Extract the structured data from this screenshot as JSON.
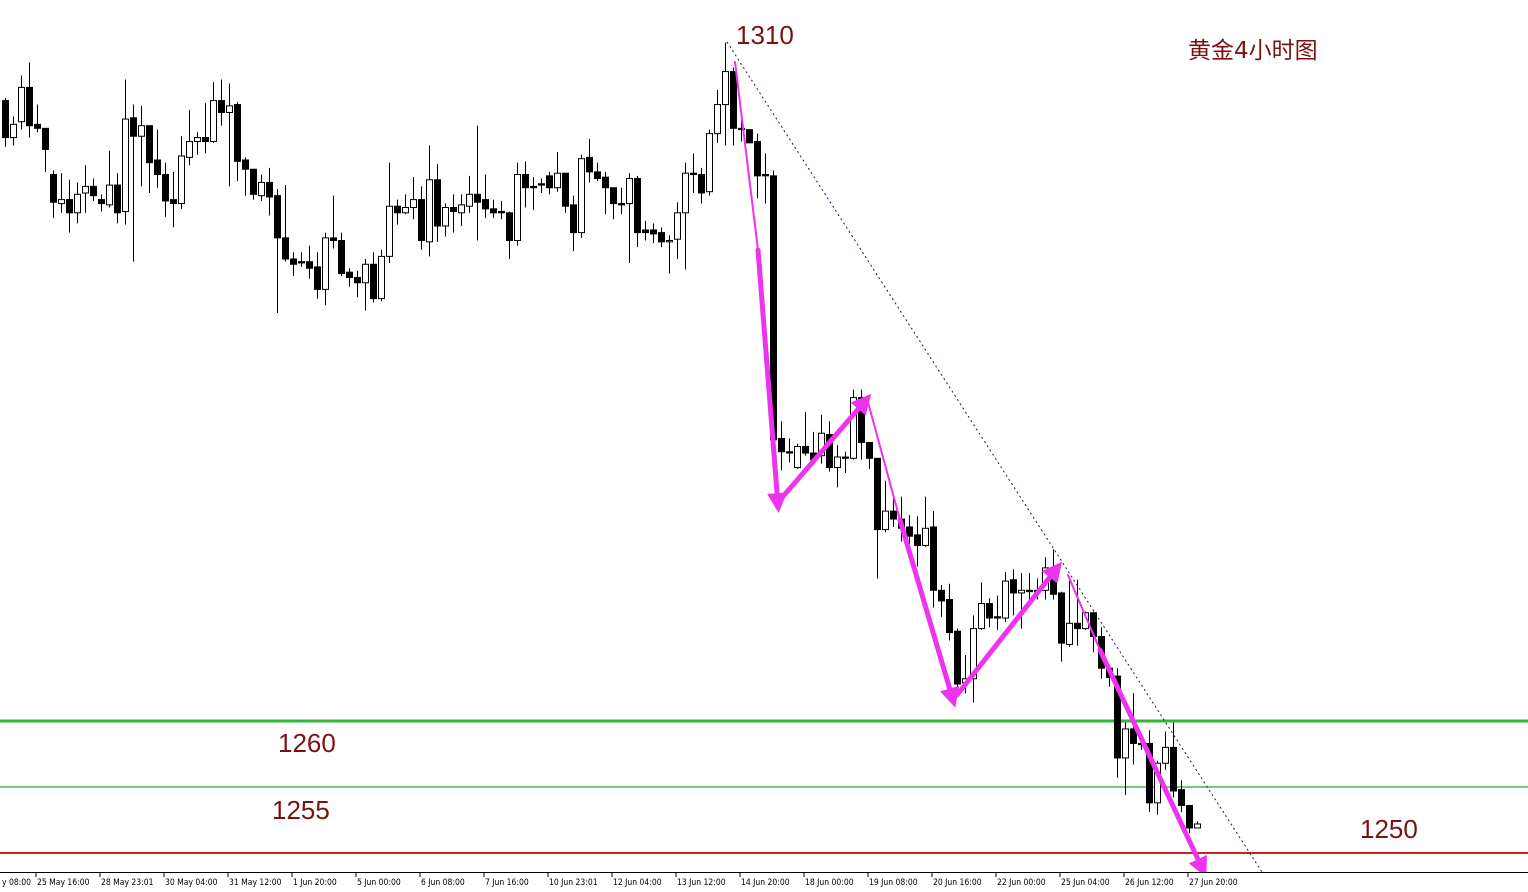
{
  "chart_data": {
    "type": "candlestick",
    "title": "黄金4小时图",
    "peak_label": "1310",
    "ylim": [
      1248.6,
      1314.6
    ],
    "grid": false,
    "colors": {
      "bull_body": "#ffffff",
      "bear_body": "#000000",
      "wick": "#000000",
      "arrows": "#ee33ee",
      "trendline": "#1a1a5a",
      "label_text": "#7a1212"
    },
    "levels": [
      {
        "price": 1260,
        "label": "1260",
        "color": "#2fba2f"
      },
      {
        "price": 1255,
        "label": "1255",
        "color": "#44bb44"
      },
      {
        "price": 1250,
        "label": "1250",
        "color": "#cc2020"
      }
    ],
    "x_ticks": [
      {
        "bar": -4,
        "label": "y 08:00"
      },
      {
        "bar": 4,
        "label": "25 May 16:00"
      },
      {
        "bar": 12,
        "label": "28 May 23:01"
      },
      {
        "bar": 20,
        "label": "30 May 04:00"
      },
      {
        "bar": 28,
        "label": "31 May 12:00"
      },
      {
        "bar": 36,
        "label": "1 Jun 20:00"
      },
      {
        "bar": 44,
        "label": "5 Jun 00:00"
      },
      {
        "bar": 52,
        "label": "6 Jun 08:00"
      },
      {
        "bar": 60,
        "label": "7 Jun 16:00"
      },
      {
        "bar": 68,
        "label": "10 Jun 23:01"
      },
      {
        "bar": 76,
        "label": "12 Jun 04:00"
      },
      {
        "bar": 84,
        "label": "13 Jun 12:00"
      },
      {
        "bar": 92,
        "label": "14 Jun 20:00"
      },
      {
        "bar": 100,
        "label": "18 Jun 00:00"
      },
      {
        "bar": 108,
        "label": "19 Jun 08:00"
      },
      {
        "bar": 116,
        "label": "20 Jun 16:00"
      },
      {
        "bar": 124,
        "label": "22 Jun 00:00"
      },
      {
        "bar": 132,
        "label": "25 Jun 04:00"
      },
      {
        "bar": 140,
        "label": "26 Jun 12:00"
      },
      {
        "bar": 148,
        "label": "27 Jun 20:00"
      }
    ],
    "ohlc_fields": [
      "open",
      "high",
      "low",
      "close"
    ],
    "ohlc": [
      [
        1307.0,
        1307.2,
        1303.5,
        1304.2
      ],
      [
        1304.2,
        1305.8,
        1303.6,
        1305.2
      ],
      [
        1305.4,
        1308.9,
        1304.8,
        1308.0
      ],
      [
        1308.0,
        1309.9,
        1304.2,
        1305.1
      ],
      [
        1305.2,
        1306.7,
        1304.6,
        1304.9
      ],
      [
        1304.9,
        1304.9,
        1301.6,
        1303.3
      ],
      [
        1301.4,
        1301.7,
        1298.1,
        1299.3
      ],
      [
        1299.2,
        1301.5,
        1298.5,
        1299.5
      ],
      [
        1299.5,
        1301.0,
        1297.0,
        1298.5
      ],
      [
        1298.5,
        1300.8,
        1297.7,
        1299.9
      ],
      [
        1300.0,
        1302.1,
        1298.5,
        1300.5
      ],
      [
        1300.5,
        1301.1,
        1299.4,
        1299.8
      ],
      [
        1299.5,
        1299.9,
        1298.6,
        1299.2
      ],
      [
        1299.1,
        1303.2,
        1298.9,
        1300.6
      ],
      [
        1300.6,
        1301.5,
        1297.7,
        1298.5
      ],
      [
        1298.6,
        1308.6,
        1297.6,
        1305.6
      ],
      [
        1305.7,
        1306.7,
        1294.8,
        1304.3
      ],
      [
        1304.3,
        1306.6,
        1300.5,
        1305.1
      ],
      [
        1305.1,
        1305.1,
        1300.0,
        1302.3
      ],
      [
        1302.5,
        1304.8,
        1300.4,
        1301.4
      ],
      [
        1301.4,
        1302.3,
        1298.2,
        1299.4
      ],
      [
        1299.5,
        1301.6,
        1297.4,
        1299.2
      ],
      [
        1299.2,
        1304.3,
        1298.8,
        1302.8
      ],
      [
        1302.7,
        1306.3,
        1302.1,
        1303.9
      ],
      [
        1303.9,
        1304.6,
        1302.9,
        1304.2
      ],
      [
        1304.2,
        1306.8,
        1303.0,
        1303.9
      ],
      [
        1303.9,
        1308.4,
        1303.8,
        1307.0
      ],
      [
        1307.0,
        1308.6,
        1305.1,
        1306.1
      ],
      [
        1306.1,
        1308.3,
        1300.5,
        1306.6
      ],
      [
        1306.7,
        1306.9,
        1300.9,
        1302.4
      ],
      [
        1302.5,
        1302.7,
        1299.8,
        1301.8
      ],
      [
        1301.8,
        1301.8,
        1299.5,
        1299.9
      ],
      [
        1299.8,
        1301.4,
        1299.4,
        1300.8
      ],
      [
        1300.8,
        1301.9,
        1298.3,
        1299.7
      ],
      [
        1299.8,
        1300.3,
        1290.9,
        1296.6
      ],
      [
        1296.6,
        1300.6,
        1294.8,
        1295.0
      ],
      [
        1295.0,
        1295.5,
        1293.7,
        1294.6
      ],
      [
        1294.8,
        1295.5,
        1294.4,
        1294.7
      ],
      [
        1294.8,
        1296.0,
        1293.5,
        1294.3
      ],
      [
        1294.4,
        1295.5,
        1292.0,
        1292.7
      ],
      [
        1292.7,
        1297.0,
        1291.5,
        1296.6
      ],
      [
        1296.6,
        1299.8,
        1295.8,
        1296.4
      ],
      [
        1296.4,
        1297.0,
        1293.7,
        1293.9
      ],
      [
        1294.0,
        1294.3,
        1292.9,
        1293.6
      ],
      [
        1293.6,
        1294.1,
        1292.1,
        1293.2
      ],
      [
        1293.2,
        1295.0,
        1291.1,
        1294.6
      ],
      [
        1294.6,
        1295.5,
        1291.7,
        1292.0
      ],
      [
        1292.0,
        1295.7,
        1291.8,
        1295.2
      ],
      [
        1295.2,
        1302.3,
        1294.7,
        1299.0
      ],
      [
        1299.0,
        1299.5,
        1297.6,
        1298.5
      ],
      [
        1298.5,
        1299.9,
        1298.4,
        1298.9
      ],
      [
        1298.9,
        1301.2,
        1298.0,
        1299.5
      ],
      [
        1299.5,
        1300.5,
        1295.7,
        1296.4
      ],
      [
        1296.3,
        1303.6,
        1295.2,
        1301.0
      ],
      [
        1301.0,
        1302.2,
        1296.3,
        1297.5
      ],
      [
        1297.5,
        1299.2,
        1296.7,
        1298.9
      ],
      [
        1298.9,
        1299.9,
        1297.0,
        1298.6
      ],
      [
        1298.5,
        1299.9,
        1297.5,
        1299.1
      ],
      [
        1299.0,
        1301.3,
        1298.5,
        1299.9
      ],
      [
        1299.9,
        1305.1,
        1296.4,
        1299.3
      ],
      [
        1299.5,
        1301.4,
        1298.1,
        1298.8
      ],
      [
        1298.8,
        1299.5,
        1298.1,
        1298.5
      ],
      [
        1298.6,
        1299.4,
        1298.0,
        1298.5
      ],
      [
        1298.5,
        1298.6,
        1295.0,
        1296.4
      ],
      [
        1296.4,
        1302.3,
        1296.0,
        1301.4
      ],
      [
        1301.4,
        1302.4,
        1298.9,
        1300.4
      ],
      [
        1300.5,
        1301.2,
        1298.7,
        1300.4
      ],
      [
        1300.7,
        1301.1,
        1300.0,
        1300.6
      ],
      [
        1301.3,
        1301.6,
        1299.9,
        1300.4
      ],
      [
        1300.4,
        1303.1,
        1300.1,
        1301.5
      ],
      [
        1301.5,
        1301.5,
        1298.5,
        1299.0
      ],
      [
        1299.1,
        1299.8,
        1295.6,
        1297.0
      ],
      [
        1297.0,
        1302.9,
        1296.6,
        1302.6
      ],
      [
        1302.7,
        1304.1,
        1300.8,
        1301.6
      ],
      [
        1301.6,
        1302.3,
        1300.9,
        1301.1
      ],
      [
        1301.2,
        1301.6,
        1298.4,
        1300.4
      ],
      [
        1300.4,
        1300.4,
        1298.0,
        1299.2
      ],
      [
        1299.2,
        1300.4,
        1298.4,
        1299.1
      ],
      [
        1299.2,
        1301.5,
        1294.7,
        1301.1
      ],
      [
        1301.1,
        1301.3,
        1295.9,
        1297.0
      ],
      [
        1297.2,
        1297.9,
        1296.4,
        1297.0
      ],
      [
        1297.2,
        1297.7,
        1296.2,
        1296.9
      ],
      [
        1297.0,
        1297.4,
        1295.9,
        1296.3
      ],
      [
        1296.3,
        1296.8,
        1293.9,
        1296.4
      ],
      [
        1296.5,
        1299.3,
        1295.0,
        1298.5
      ],
      [
        1298.5,
        1302.3,
        1294.2,
        1301.5
      ],
      [
        1301.5,
        1303.0,
        1300.0,
        1301.4
      ],
      [
        1301.4,
        1301.9,
        1299.2,
        1300.0
      ],
      [
        1300.1,
        1304.8,
        1299.8,
        1304.5
      ],
      [
        1304.5,
        1307.8,
        1303.8,
        1306.7
      ],
      [
        1306.7,
        1311.4,
        1303.6,
        1309.2
      ],
      [
        1309.2,
        1309.5,
        1303.6,
        1304.9
      ],
      [
        1304.9,
        1305.8,
        1303.9,
        1304.8
      ],
      [
        1304.8,
        1304.8,
        1303.8,
        1303.8
      ],
      [
        1303.9,
        1304.5,
        1299.6,
        1301.3
      ],
      [
        1301.4,
        1303.0,
        1299.2,
        1301.3
      ],
      [
        1301.3,
        1301.7,
        1279.0,
        1281.3
      ],
      [
        1281.4,
        1282.7,
        1279.0,
        1280.4
      ],
      [
        1280.4,
        1281.4,
        1279.6,
        1280.3
      ],
      [
        1279.2,
        1281.0,
        1279.1,
        1280.8
      ],
      [
        1280.8,
        1283.4,
        1280.1,
        1280.3
      ],
      [
        1280.3,
        1281.9,
        1279.4,
        1279.8
      ],
      [
        1280.1,
        1283.2,
        1279.5,
        1281.8
      ],
      [
        1281.7,
        1282.7,
        1278.9,
        1279.2
      ],
      [
        1279.2,
        1280.9,
        1277.7,
        1280.0
      ],
      [
        1280.0,
        1280.4,
        1278.8,
        1279.9
      ],
      [
        1279.9,
        1285.1,
        1279.8,
        1284.5
      ],
      [
        1284.5,
        1285.1,
        1279.8,
        1281.1
      ],
      [
        1281.1,
        1281.1,
        1279.1,
        1279.9
      ],
      [
        1279.9,
        1279.9,
        1270.8,
        1274.5
      ],
      [
        1274.5,
        1278.2,
        1274.3,
        1275.9
      ],
      [
        1275.9,
        1276.9,
        1274.7,
        1275.3
      ],
      [
        1275.3,
        1277.0,
        1273.6,
        1274.6
      ],
      [
        1274.7,
        1275.6,
        1273.4,
        1274.0
      ],
      [
        1274.1,
        1275.5,
        1271.7,
        1273.3
      ],
      [
        1273.3,
        1277.0,
        1273.2,
        1274.6
      ],
      [
        1274.7,
        1275.9,
        1268.6,
        1269.9
      ],
      [
        1269.9,
        1270.3,
        1267.9,
        1269.1
      ],
      [
        1269.2,
        1270.4,
        1266.1,
        1266.7
      ],
      [
        1266.8,
        1267.0,
        1262.3,
        1262.8
      ],
      [
        1262.9,
        1265.0,
        1262.1,
        1263.2
      ],
      [
        1263.2,
        1268.0,
        1261.4,
        1267.0
      ],
      [
        1267.0,
        1270.5,
        1266.9,
        1268.9
      ],
      [
        1268.9,
        1269.3,
        1267.1,
        1267.8
      ],
      [
        1267.9,
        1269.5,
        1266.9,
        1267.8
      ],
      [
        1267.8,
        1271.3,
        1267.5,
        1270.6
      ],
      [
        1270.7,
        1271.5,
        1268.0,
        1269.7
      ],
      [
        1269.7,
        1271.2,
        1267.0,
        1269.9
      ],
      [
        1269.9,
        1271.2,
        1269.2,
        1269.8
      ],
      [
        1269.9,
        1270.8,
        1269.2,
        1269.8
      ],
      [
        1269.9,
        1272.4,
        1269.2,
        1271.6
      ],
      [
        1271.6,
        1273.0,
        1269.2,
        1269.6
      ],
      [
        1269.7,
        1269.8,
        1264.5,
        1265.9
      ],
      [
        1265.8,
        1270.8,
        1265.6,
        1267.4
      ],
      [
        1267.4,
        1270.7,
        1265.7,
        1267.0
      ],
      [
        1267.0,
        1268.3,
        1266.9,
        1268.2
      ],
      [
        1268.2,
        1268.3,
        1265.2,
        1266.4
      ],
      [
        1266.4,
        1267.1,
        1263.2,
        1264.0
      ],
      [
        1264.0,
        1264.2,
        1262.6,
        1263.3
      ],
      [
        1263.4,
        1264.0,
        1255.7,
        1257.2
      ],
      [
        1257.2,
        1259.9,
        1254.4,
        1259.4
      ],
      [
        1259.4,
        1262.1,
        1256.7,
        1258.3
      ],
      [
        1258.3,
        1258.6,
        1257.8,
        1258.2
      ],
      [
        1258.3,
        1259.3,
        1253.1,
        1253.8
      ],
      [
        1253.8,
        1257.0,
        1252.9,
        1256.8
      ],
      [
        1256.8,
        1259.2,
        1256.3,
        1258.0
      ],
      [
        1258.0,
        1259.9,
        1254.2,
        1254.7
      ],
      [
        1254.8,
        1255.5,
        1253.1,
        1253.6
      ],
      [
        1253.6,
        1253.6,
        1251.5,
        1251.9
      ],
      [
        1251.9,
        1252.4,
        1251.9,
        1252.2
      ]
    ]
  }
}
